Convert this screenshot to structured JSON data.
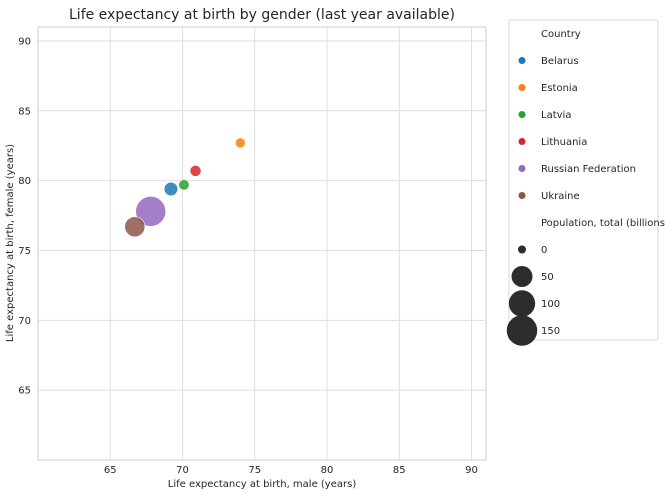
{
  "chart_data": {
    "type": "scatter",
    "title": "Life expectancy at birth by gender (last year available)",
    "xlabel": "Life expectancy at birth, male (years)",
    "ylabel": "Life expectancy at birth, female (years)",
    "xlim": [
      60,
      91
    ],
    "ylim": [
      60,
      91
    ],
    "xticks": [
      65,
      70,
      75,
      80,
      85,
      90
    ],
    "yticks": [
      65,
      70,
      75,
      80,
      85,
      90
    ],
    "grid": true,
    "legend_position": "outside-right",
    "points": [
      {
        "country": "Belarus",
        "x": 69.2,
        "y": 79.4,
        "population": 9.4,
        "color": "#1f77b4"
      },
      {
        "country": "Estonia",
        "x": 74.0,
        "y": 82.7,
        "population": 1.3,
        "color": "#ff7f0e"
      },
      {
        "country": "Latvia",
        "x": 70.1,
        "y": 79.7,
        "population": 1.9,
        "color": "#2ca02c"
      },
      {
        "country": "Lithuania",
        "x": 70.9,
        "y": 80.7,
        "population": 2.8,
        "color": "#d62728"
      },
      {
        "country": "Russian Federation",
        "x": 67.8,
        "y": 77.8,
        "population": 144.0,
        "color": "#9467bd"
      },
      {
        "country": "Ukraine",
        "x": 66.7,
        "y": 76.7,
        "population": 44.0,
        "color": "#8c564b"
      }
    ],
    "legend": {
      "hue_title": "Country",
      "size_title": "Population, total (billions)",
      "size_values": [
        0,
        50,
        100,
        150
      ],
      "size_labels": [
        "0",
        "50",
        "100",
        "150"
      ]
    }
  }
}
